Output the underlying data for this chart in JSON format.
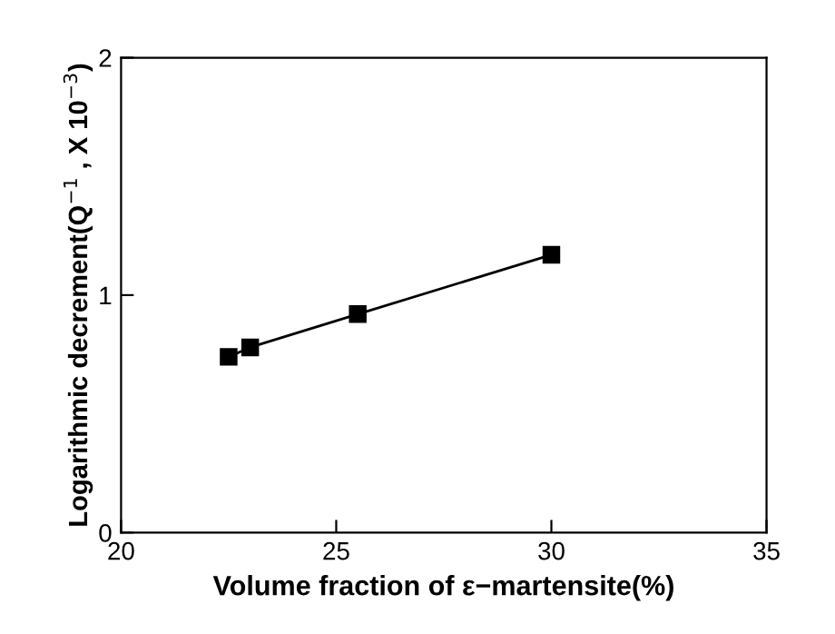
{
  "chart_data": {
    "type": "line",
    "xlabel": "Volume fraction of ε−martensite(%)",
    "ylabel": "Logarithmic decrement(Q$^{−1}$ , X 10$^{−3}$)",
    "x": [
      22.5,
      23.0,
      25.5,
      30.0
    ],
    "series": [
      {
        "color": "#000000",
        "values": [
          0.74,
          0.78,
          0.92,
          1.17
        ]
      }
    ],
    "xlim": [
      20,
      35
    ],
    "xticks": [
      20,
      25,
      30,
      35
    ],
    "ylim": [
      0,
      2
    ],
    "yticks": [
      0,
      1,
      2
    ],
    "marker": "square",
    "line_style": "solid",
    "grid": false
  }
}
